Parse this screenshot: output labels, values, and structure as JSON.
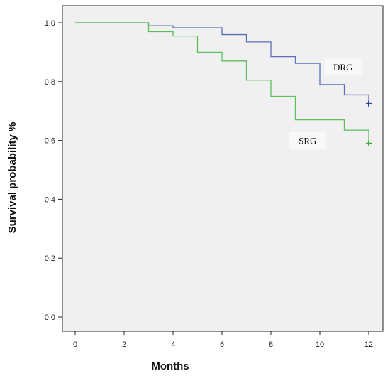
{
  "chart_data": {
    "type": "line",
    "step": true,
    "title": "",
    "xlabel": "Months",
    "ylabel": "Survival probability %",
    "xlim": [
      0,
      12
    ],
    "ylim": [
      0,
      1
    ],
    "x_ticks": [
      0,
      2,
      4,
      6,
      8,
      10,
      12
    ],
    "x_tick_labels": [
      "0",
      "2",
      "4",
      "6",
      "8",
      "10",
      "12"
    ],
    "y_ticks": [
      0,
      0.2,
      0.4,
      0.6,
      0.8,
      1.0
    ],
    "y_tick_labels": [
      "0,0",
      "0,2",
      "0,4",
      "0,6",
      "0,8",
      "1,0"
    ],
    "grid": false,
    "legend": "none",
    "plot_background": "#f0f0f0",
    "series": [
      {
        "name": "DRG",
        "color": "#5b6fb8",
        "censor_color": "#2b3fa8",
        "points": [
          [
            0,
            1.0
          ],
          [
            3,
            0.99
          ],
          [
            4,
            0.983
          ],
          [
            6,
            0.96
          ],
          [
            7,
            0.935
          ],
          [
            8,
            0.885
          ],
          [
            9,
            0.862
          ],
          [
            10,
            0.79
          ],
          [
            11,
            0.755
          ],
          [
            12,
            0.725
          ]
        ],
        "censored": [
          [
            12,
            0.725
          ]
        ]
      },
      {
        "name": "SRG",
        "color": "#5cbf5c",
        "censor_color": "#3aab3a",
        "points": [
          [
            0,
            1.0
          ],
          [
            3,
            0.97
          ],
          [
            4,
            0.955
          ],
          [
            5,
            0.9
          ],
          [
            6,
            0.87
          ],
          [
            7,
            0.805
          ],
          [
            8,
            0.75
          ],
          [
            9,
            0.67
          ],
          [
            11,
            0.635
          ],
          [
            12,
            0.59
          ]
        ],
        "censored": [
          [
            12,
            0.59
          ]
        ]
      }
    ],
    "annotations": [
      {
        "text": "DRG",
        "x": 10.95,
        "y": 0.845
      },
      {
        "text": "SRG",
        "x": 9.5,
        "y": 0.595
      }
    ]
  }
}
